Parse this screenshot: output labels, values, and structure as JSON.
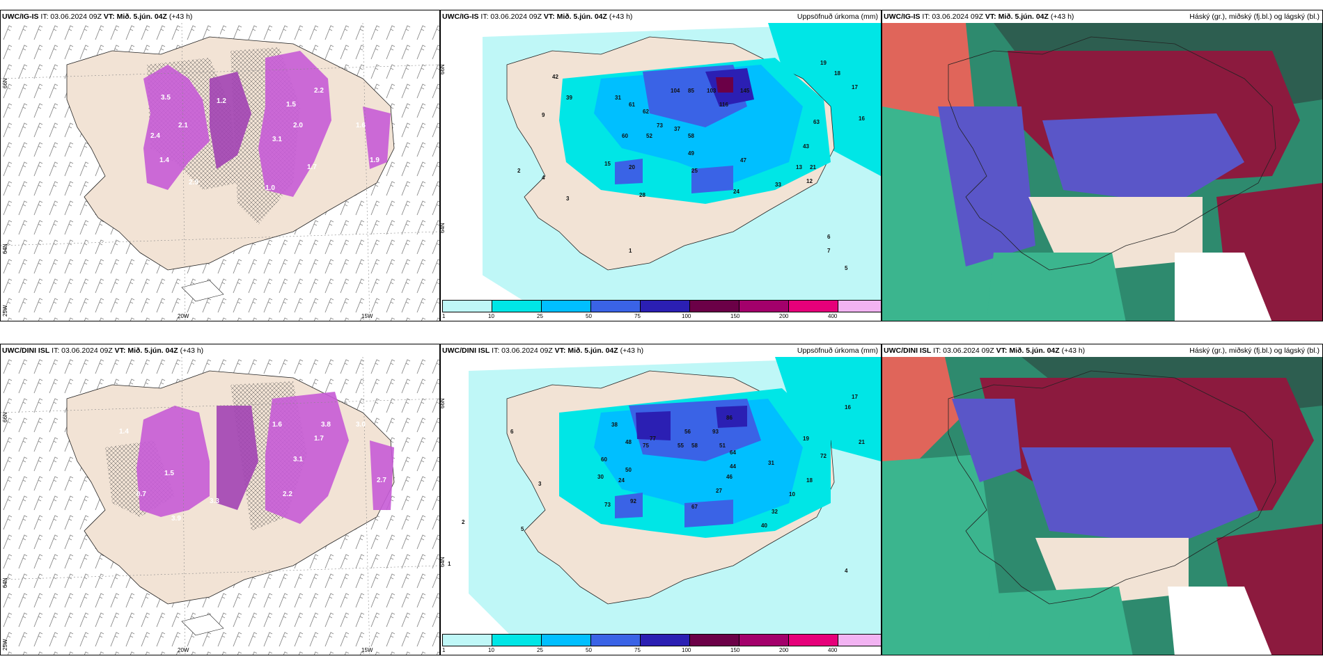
{
  "panels": {
    "a": {
      "model": "UWC/IG-IS",
      "it": "IT: 03.06.2024 09Z",
      "vt": "VT: Mið. 5.jún. 04Z",
      "lead": "(+43 h)"
    },
    "b": {
      "model": "UWC/IG-IS",
      "it": "IT: 03.06.2024 09Z",
      "vt": "VT: Mið. 5.jún. 04Z",
      "lead": "(+43 h)",
      "right": "Uppsöfnuð úrkoma (mm)"
    },
    "c": {
      "model": "UWC/IG-IS",
      "it": "IT: 03.06.2024 09Z",
      "vt": "VT: Mið. 5.jún. 04Z",
      "lead": "(+43 h)",
      "right": "Háský (gr.), miðský (fj.bl.) og lágský (bl.)"
    },
    "d": {
      "model": "UWC/DINI ISL",
      "it": "IT: 03.06.2024 09Z",
      "vt": "VT: Mið. 5.jún. 04Z",
      "lead": "(+43 h)"
    },
    "e": {
      "model": "UWC/DINI ISL",
      "it": "IT: 03.06.2024 09Z",
      "vt": "VT: Mið. 5.jún. 04Z",
      "lead": "(+43 h)",
      "right": "Uppsöfnuð úrkoma (mm)"
    },
    "f": {
      "model": "UWC/DINI ISL",
      "it": "IT: 03.06.2024 09Z",
      "vt": "VT: Mið. 5.jún. 04Z",
      "lead": "(+43 h)",
      "right": "Háský (gr.), miðský (fj.bl.) og lágský (bl.)"
    }
  },
  "axes": {
    "lat66": "66N",
    "lat64": "64N",
    "lon25": "25W",
    "lon20": "20W",
    "lon15": "15W"
  },
  "colorbar": {
    "ticks": [
      "1",
      "10",
      "25",
      "50",
      "75",
      "100",
      "150",
      "200",
      "400"
    ],
    "colors": [
      "#bff7f7",
      "#00e6e6",
      "#00bfff",
      "#3a63e6",
      "#2b1fb3",
      "#6b0047",
      "#a3006b",
      "#e6007a",
      "#f2b3f2"
    ]
  },
  "values_top_precip": [
    "42",
    "39",
    "31",
    "61",
    "62",
    "104",
    "85",
    "103",
    "145",
    "116",
    "19",
    "18",
    "17",
    "16",
    "43",
    "63",
    "13",
    "21",
    "12",
    "52",
    "60",
    "73",
    "58",
    "49",
    "37",
    "25",
    "20",
    "15",
    "47",
    "33",
    "24",
    "28",
    "3",
    "2",
    "4",
    "9",
    "7",
    "6",
    "1",
    "5"
  ],
  "values_top_snow": [
    "0.2",
    "1.1",
    "3.5",
    "2.1",
    "1.4",
    "2.9",
    "1.0",
    "1.5",
    "2.0",
    "2.2",
    "1.6",
    "0.6",
    "3.1",
    "0.8",
    "1.9",
    "1.2",
    "0.5",
    "1.7",
    "2.4",
    "0.3"
  ],
  "values_bottom_precip": [
    "17",
    "16",
    "21",
    "38",
    "56",
    "86",
    "77",
    "75",
    "58",
    "55",
    "48",
    "51",
    "50",
    "93",
    "92",
    "73",
    "67",
    "60",
    "44",
    "32",
    "10",
    "5",
    "4",
    "2",
    "1",
    "3",
    "6",
    "24",
    "30",
    "18",
    "31",
    "64",
    "46",
    "27",
    "40",
    "14",
    "40",
    "72",
    "19"
  ],
  "values_bottom_snow": [
    "1.4",
    "0.7",
    "1.5",
    "3.3",
    "3.9",
    "2.2",
    "3.1",
    "1.7",
    "3.8",
    "3.0",
    "2.5",
    "1.2",
    "0.9",
    "2.7",
    "1.6",
    "0.8"
  ]
}
